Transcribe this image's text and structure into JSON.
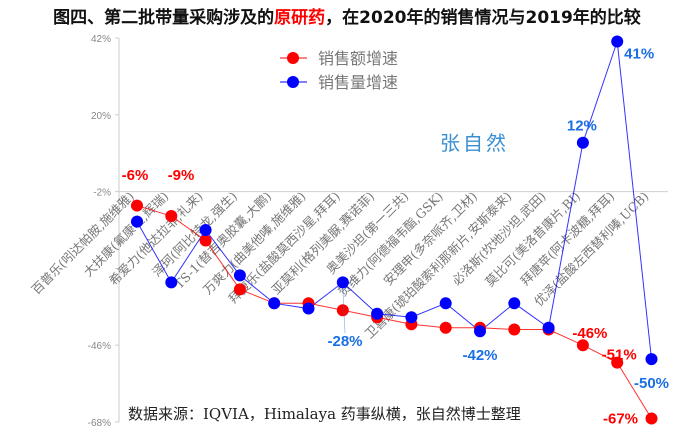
{
  "chart_data": {
    "type": "line",
    "title_parts": [
      "图四、第二批带量采购涉及的",
      "原研药",
      "，在2020年的销售情况与2019年的比较"
    ],
    "title_colors": [
      "#111111",
      "#ff0000",
      "#111111"
    ],
    "ylim": [
      -68,
      42
    ],
    "yticks": [
      42,
      20,
      -2,
      -24,
      -46,
      -68
    ],
    "ytick_labels": [
      "42%",
      "20%",
      "-2%",
      "",
      "-46%",
      "-68%"
    ],
    "gridline_at": -2,
    "legend_placement": "top-center",
    "categories": [
      "百普乐(吲达帕胺,施维雅)",
      "大扶康(氟康唑,辉瑞)",
      "希爱力(他达拉非,礼来)",
      "泽珂(阿比特龙,强生)",
      "TS-1(替吉奥胶囊,大鹏)",
      "万爽力(曲美他嗪,施维雅)",
      "拜复乐(盐酸莫西沙星,拜耳)",
      "亚莫利(格列美脲,赛诺菲)",
      "奥美沙坦(第一三共)",
      "贺维力(阿德福韦酯,GSK)",
      "安理申(多奈哌齐,卫材)",
      "卫喜康(琥珀酸索利那新片,安斯泰来)",
      "必洛斯(坎地沙坦,武田)",
      "莫比可(美洛昔康片,BI)",
      "拜唐苹(阿卡波糖,拜耳)",
      "优泽(盐酸左西替利嗪,UCB)"
    ],
    "series": [
      {
        "name": "销售额增速",
        "color": "#ff0000",
        "values": [
          -6,
          -9,
          -16,
          -30,
          -34,
          -34,
          -36,
          -38,
          -40,
          -41,
          -41,
          -41.5,
          -41.5,
          -46,
          -51,
          -67
        ]
      },
      {
        "name": "销售量增速",
        "color": "#0000ff",
        "values": [
          -10.6,
          -28,
          -13,
          -26,
          -34,
          -35.5,
          -28,
          -37,
          -38,
          -34,
          -42,
          -34,
          -41,
          12,
          41,
          -50
        ]
      }
    ],
    "data_labels": [
      {
        "series": 0,
        "index": 0,
        "text": "-6%",
        "color": "#ff0000"
      },
      {
        "series": 0,
        "index": 1,
        "text": "-9%",
        "color": "#ff0000"
      },
      {
        "series": 1,
        "index": 6,
        "text": "-28%",
        "color": "#1a6fe6"
      },
      {
        "series": 1,
        "index": 10,
        "text": "-42%",
        "color": "#1a6fe6"
      },
      {
        "series": 0,
        "index": 13,
        "text": "-46%",
        "color": "#ff0000"
      },
      {
        "series": 0,
        "index": 14,
        "text": "-51%",
        "color": "#ff0000"
      },
      {
        "series": 0,
        "index": 15,
        "text": "-67%",
        "color": "#ff0000"
      },
      {
        "series": 1,
        "index": 13,
        "text": "12%",
        "color": "#1a6fe6"
      },
      {
        "series": 1,
        "index": 14,
        "text": "41%",
        "color": "#1a6fe6"
      },
      {
        "series": 1,
        "index": 15,
        "text": "-50%",
        "color": "#1a6fe6"
      }
    ],
    "watermark": "张自然",
    "source": "数据来源：IQVIA，Himalaya 药事纵横，张自然博士整理"
  }
}
